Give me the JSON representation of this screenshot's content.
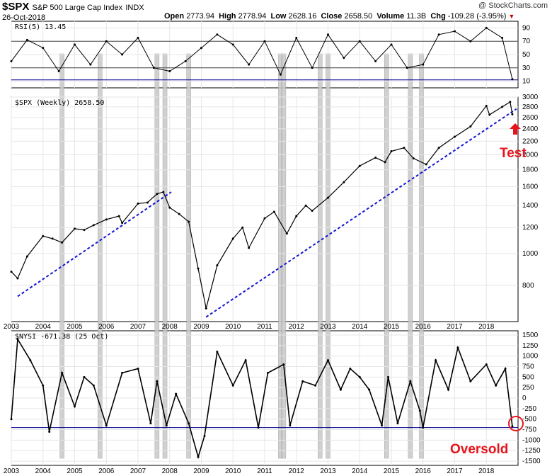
{
  "header": {
    "symbol": "$SPX",
    "name": "S&P 500 Large Cap Index",
    "exchange": "INDX",
    "date": "26-Oct-2018",
    "watermark": "@ StockCharts.com",
    "open_label": "Open",
    "open": "2773.94",
    "high_label": "High",
    "high": "2778.94",
    "low_label": "Low",
    "low": "2628.16",
    "close_label": "Close",
    "close": "2658.50",
    "volume_label": "Volume",
    "volume": "11.3B",
    "chg_label": "Chg",
    "chg": "-109.28 (-3.95%)",
    "chg_icon": "down-triangle-icon"
  },
  "panels": {
    "rsi": {
      "label": "RSI(5) 13.45"
    },
    "price": {
      "label": "$SPX (Weekly) 2658.50"
    },
    "nysi": {
      "label": "$NYSI -671.38 (25 Oct)"
    }
  },
  "annotations": {
    "test": "Test",
    "oversold": "Oversold",
    "arrow_icon": "up-arrow-icon",
    "circle_icon": "circle-marker-icon"
  },
  "colors": {
    "price_line": "#000000",
    "trendline": "#1515d4",
    "shade_bar": "#c8c8c8",
    "rsi_fill": "#5f8f5f",
    "annotation": "#e8141c",
    "grid": "#e6e6e6"
  },
  "chart_data": [
    {
      "type": "line",
      "title": "RSI(5) 13.45",
      "y_ticks": [
        10,
        30,
        50,
        70,
        90
      ],
      "ylim": [
        0,
        100
      ],
      "reference_lines": [
        30,
        70,
        12
      ],
      "last_value": 13.45,
      "x": [
        2003.0,
        2003.5,
        2004.0,
        2004.5,
        2005.0,
        2005.5,
        2006.0,
        2006.5,
        2007.0,
        2007.5,
        2008.0,
        2008.5,
        2009.0,
        2009.5,
        2010.0,
        2010.5,
        2011.0,
        2011.5,
        2012.0,
        2012.5,
        2013.0,
        2013.5,
        2014.0,
        2014.5,
        2015.0,
        2015.5,
        2016.0,
        2016.5,
        2017.0,
        2017.5,
        2018.0,
        2018.5,
        2018.82
      ],
      "values": [
        40,
        72,
        60,
        25,
        65,
        35,
        70,
        50,
        75,
        30,
        25,
        40,
        60,
        80,
        65,
        35,
        70,
        20,
        75,
        30,
        80,
        45,
        70,
        40,
        65,
        30,
        35,
        80,
        85,
        70,
        90,
        75,
        13
      ]
    },
    {
      "type": "line",
      "title": "$SPX (Weekly) 2658.50",
      "x_ticks": [
        2003,
        2004,
        2005,
        2006,
        2007,
        2008,
        2009,
        2010,
        2011,
        2012,
        2013,
        2014,
        2015,
        2016,
        2017,
        2018
      ],
      "y_ticks": [
        800,
        1000,
        1200,
        1400,
        1600,
        1800,
        2000,
        2200,
        2400,
        2600,
        2800,
        3000
      ],
      "y_scale": "log",
      "ylim": [
        620,
        3000
      ],
      "series": [
        {
          "x": [
            2003.0,
            2003.2,
            2003.5,
            2004.0,
            2004.3,
            2004.6,
            2005.0,
            2005.3,
            2005.6,
            2006.0,
            2006.4,
            2006.5,
            2007.0,
            2007.3,
            2007.6,
            2007.8,
            2008.0,
            2008.3,
            2008.6,
            2008.9,
            2009.15,
            2009.5,
            2010.0,
            2010.3,
            2010.5,
            2011.0,
            2011.3,
            2011.7,
            2012.0,
            2012.3,
            2012.5,
            2013.0,
            2013.5,
            2014.0,
            2014.5,
            2014.8,
            2015.0,
            2015.4,
            2015.7,
            2016.1,
            2016.5,
            2017.0,
            2017.5,
            2018.0,
            2018.1,
            2018.5,
            2018.75,
            2018.82
          ],
          "values": [
            880,
            840,
            980,
            1130,
            1110,
            1080,
            1190,
            1180,
            1220,
            1270,
            1300,
            1240,
            1420,
            1430,
            1520,
            1540,
            1380,
            1320,
            1250,
            900,
            680,
            920,
            1110,
            1200,
            1040,
            1280,
            1340,
            1150,
            1300,
            1400,
            1350,
            1480,
            1650,
            1850,
            1960,
            1900,
            2050,
            2100,
            1950,
            1870,
            2100,
            2270,
            2440,
            2820,
            2650,
            2800,
            2900,
            2658
          ]
        }
      ],
      "trendlines": [
        {
          "x": [
            2003.2,
            2008.05
          ],
          "values": [
            740,
            1540
          ]
        },
        {
          "x": [
            2009.15,
            2018.95
          ],
          "values": [
            640,
            2760
          ]
        }
      ]
    },
    {
      "type": "line",
      "title": "$NYSI -671.38 (25 Oct)",
      "x_ticks": [
        2003,
        2004,
        2005,
        2006,
        2007,
        2008,
        2009,
        2010,
        2011,
        2012,
        2013,
        2014,
        2015,
        2016,
        2017,
        2018
      ],
      "y_ticks": [
        -1500,
        -1250,
        -1000,
        -750,
        -500,
        -250,
        0,
        250,
        500,
        750,
        1000,
        1250,
        1500
      ],
      "ylim": [
        -1600,
        1600
      ],
      "reference_line": -700,
      "x": [
        2003.0,
        2003.2,
        2003.6,
        2004.0,
        2004.2,
        2004.6,
        2005.0,
        2005.3,
        2005.6,
        2006.0,
        2006.5,
        2007.0,
        2007.4,
        2007.6,
        2007.9,
        2008.2,
        2008.6,
        2008.9,
        2009.1,
        2009.5,
        2010.0,
        2010.4,
        2010.8,
        2011.1,
        2011.6,
        2011.8,
        2012.2,
        2012.6,
        2013.0,
        2013.4,
        2013.7,
        2014.0,
        2014.3,
        2014.7,
        2014.9,
        2015.2,
        2015.6,
        2015.9,
        2016.0,
        2016.4,
        2016.8,
        2017.1,
        2017.5,
        2018.0,
        2018.3,
        2018.6,
        2018.82
      ],
      "values": [
        -500,
        1400,
        900,
        300,
        -800,
        600,
        -200,
        500,
        300,
        -650,
        600,
        700,
        -600,
        400,
        -650,
        100,
        -600,
        -1400,
        -900,
        1100,
        300,
        900,
        -700,
        600,
        800,
        -650,
        400,
        300,
        900,
        200,
        700,
        500,
        200,
        -650,
        500,
        -600,
        400,
        -300,
        -700,
        900,
        200,
        1200,
        400,
        800,
        300,
        700,
        -671
      ]
    }
  ]
}
